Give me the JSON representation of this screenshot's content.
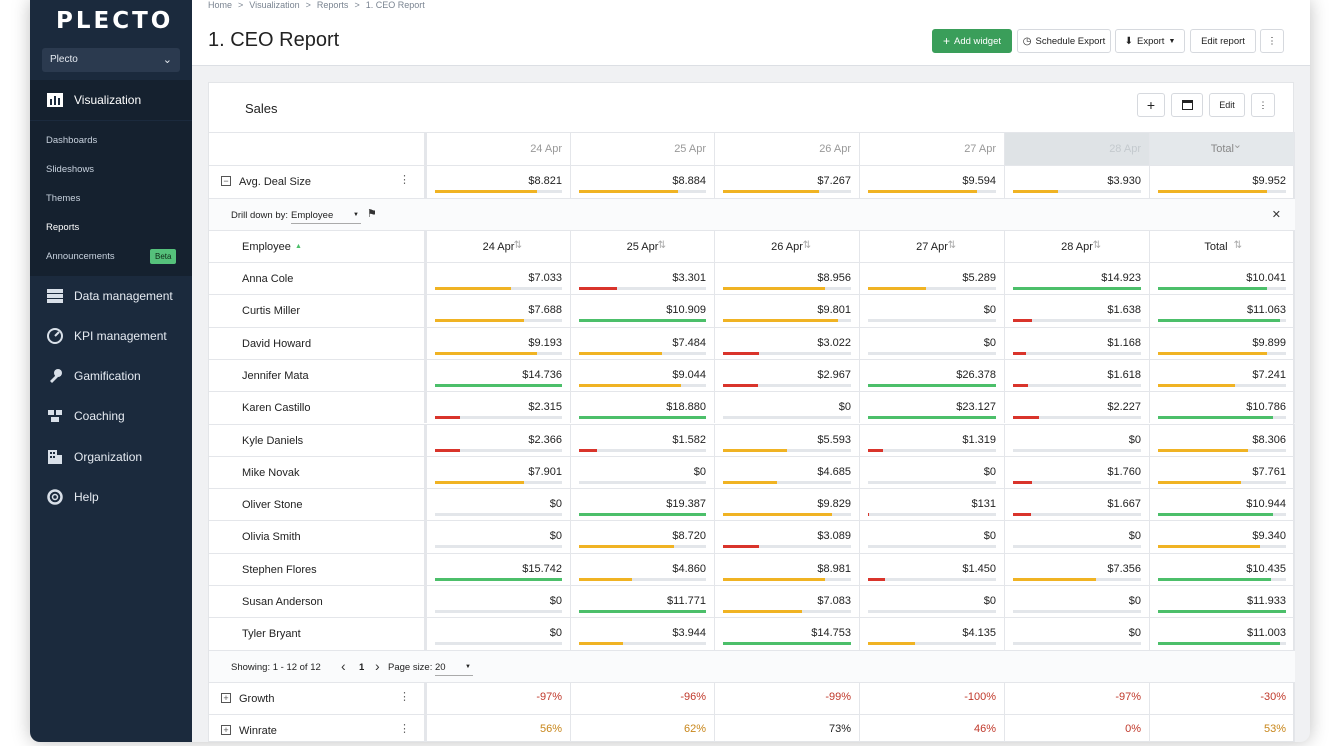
{
  "app": {
    "logo": "PLECTO",
    "org": "Plecto"
  },
  "sidebar": {
    "main": [
      {
        "label": "Visualization",
        "icon": "chart-icon"
      },
      {
        "label": "Data management",
        "icon": "database-icon"
      },
      {
        "label": "KPI management",
        "icon": "gauge-icon"
      },
      {
        "label": "Gamification",
        "icon": "gamepad-icon"
      },
      {
        "label": "Coaching",
        "icon": "coaching-icon"
      },
      {
        "label": "Organization",
        "icon": "building-icon"
      },
      {
        "label": "Help",
        "icon": "lifebuoy-icon"
      }
    ],
    "sub": [
      "Dashboards",
      "Slideshows",
      "Themes",
      "Reports",
      "Announcements"
    ],
    "beta": "Beta"
  },
  "breadcrumb": [
    "Home",
    ">",
    "Visualization",
    ">",
    "Reports",
    ">",
    "1. CEO Report"
  ],
  "page_title": "1. CEO Report",
  "toolbar": {
    "add_widget": "Add widget",
    "schedule_export": "Schedule Export",
    "export": "Export",
    "edit_report": "Edit report"
  },
  "card": {
    "title": "Sales",
    "edit": "Edit"
  },
  "colors": {
    "red": "#d9342b",
    "orange": "#f0b323",
    "green": "#4cbf6a"
  },
  "dates": [
    "24 Apr",
    "25 Apr",
    "26 Apr",
    "27 Apr",
    "28 Apr"
  ],
  "total_label": "Total",
  "avg": {
    "label": "Avg. Deal Size",
    "values": [
      "$8.821",
      "$8.884",
      "$7.267",
      "$9.594",
      "$3.930",
      "$9.952"
    ],
    "fills": [
      0.8,
      0.78,
      0.75,
      0.85,
      0.35,
      0.85
    ]
  },
  "drill": {
    "label": "Drill down by:",
    "value": "Employee"
  },
  "employee_header": "Employee",
  "employees": [
    {
      "name": "Anna Cole",
      "values": [
        "$7.033",
        "$3.301",
        "$8.956",
        "$5.289",
        "$14.923",
        "$10.041"
      ],
      "fills": [
        0.6,
        0.3,
        0.8,
        0.45,
        1.0,
        0.85
      ],
      "colors": [
        "orange",
        "red",
        "orange",
        "orange",
        "green",
        "green"
      ]
    },
    {
      "name": "Curtis Miller",
      "values": [
        "$7.688",
        "$10.909",
        "$9.801",
        "$0",
        "$1.638",
        "$11.063"
      ],
      "fills": [
        0.7,
        1.0,
        0.9,
        0,
        0.15,
        0.95
      ],
      "colors": [
        "orange",
        "green",
        "orange",
        "orange",
        "red",
        "green"
      ]
    },
    {
      "name": "David Howard",
      "values": [
        "$9.193",
        "$7.484",
        "$3.022",
        "$0",
        "$1.168",
        "$9.899"
      ],
      "fills": [
        0.8,
        0.65,
        0.28,
        0,
        0.1,
        0.85
      ],
      "colors": [
        "orange",
        "orange",
        "red",
        "orange",
        "red",
        "orange"
      ]
    },
    {
      "name": "Jennifer Mata",
      "values": [
        "$14.736",
        "$9.044",
        "$2.967",
        "$26.378",
        "$1.618",
        "$7.241"
      ],
      "fills": [
        1.0,
        0.8,
        0.27,
        1.0,
        0.12,
        0.6
      ],
      "colors": [
        "green",
        "orange",
        "red",
        "green",
        "red",
        "orange"
      ]
    },
    {
      "name": "Karen Castillo",
      "values": [
        "$2.315",
        "$18.880",
        "$0",
        "$23.127",
        "$2.227",
        "$10.786"
      ],
      "fills": [
        0.2,
        1.0,
        0,
        1.0,
        0.2,
        0.9
      ],
      "colors": [
        "red",
        "green",
        "orange",
        "green",
        "red",
        "green"
      ]
    },
    {
      "name": "Kyle Daniels",
      "values": [
        "$2.366",
        "$1.582",
        "$5.593",
        "$1.319",
        "$0",
        "$8.306"
      ],
      "fills": [
        0.2,
        0.14,
        0.5,
        0.12,
        0,
        0.7
      ],
      "colors": [
        "red",
        "red",
        "orange",
        "red",
        "orange",
        "orange"
      ]
    },
    {
      "name": "Mike Novak",
      "values": [
        "$7.901",
        "$0",
        "$4.685",
        "$0",
        "$1.760",
        "$7.761"
      ],
      "fills": [
        0.7,
        0,
        0.42,
        0,
        0.15,
        0.65
      ],
      "colors": [
        "orange",
        "orange",
        "orange",
        "orange",
        "red",
        "orange"
      ]
    },
    {
      "name": "Oliver Stone",
      "values": [
        "$0",
        "$19.387",
        "$9.829",
        "$131",
        "$1.667",
        "$10.944"
      ],
      "fills": [
        0,
        1.0,
        0.85,
        0.01,
        0.14,
        0.9
      ],
      "colors": [
        "orange",
        "green",
        "orange",
        "red",
        "red",
        "green"
      ]
    },
    {
      "name": "Olivia Smith",
      "values": [
        "$0",
        "$8.720",
        "$3.089",
        "$0",
        "$0",
        "$9.340"
      ],
      "fills": [
        0,
        0.75,
        0.28,
        0,
        0,
        0.8
      ],
      "colors": [
        "orange",
        "orange",
        "red",
        "orange",
        "orange",
        "orange"
      ]
    },
    {
      "name": "Stephen Flores",
      "values": [
        "$15.742",
        "$4.860",
        "$8.981",
        "$1.450",
        "$7.356",
        "$10.435"
      ],
      "fills": [
        1.0,
        0.42,
        0.8,
        0.13,
        0.65,
        0.88
      ],
      "colors": [
        "green",
        "orange",
        "orange",
        "red",
        "orange",
        "green"
      ]
    },
    {
      "name": "Susan Anderson",
      "values": [
        "$0",
        "$11.771",
        "$7.083",
        "$0",
        "$0",
        "$11.933"
      ],
      "fills": [
        0,
        1.0,
        0.62,
        0,
        0,
        1.0
      ],
      "colors": [
        "orange",
        "green",
        "orange",
        "orange",
        "orange",
        "green"
      ]
    },
    {
      "name": "Tyler Bryant",
      "values": [
        "$0",
        "$3.944",
        "$14.753",
        "$4.135",
        "$0",
        "$11.003"
      ],
      "fills": [
        0,
        0.35,
        1.0,
        0.37,
        0,
        0.95
      ],
      "colors": [
        "orange",
        "orange",
        "green",
        "orange",
        "orange",
        "green"
      ]
    }
  ],
  "pagination": {
    "showing": "Showing: 1 - 12 of 12",
    "page": "1",
    "page_size_label": "Page size:",
    "page_size": "20"
  },
  "growth": {
    "label": "Growth",
    "values": [
      "-97%",
      "-96%",
      "-99%",
      "-100%",
      "-97%",
      "-30%"
    ]
  },
  "winrate": {
    "label": "Winrate",
    "values": [
      "56%",
      "62%",
      "73%",
      "46%",
      "0%",
      "53%"
    ],
    "tones": [
      "orange",
      "orange",
      "green",
      "red",
      "red",
      "orange"
    ]
  }
}
